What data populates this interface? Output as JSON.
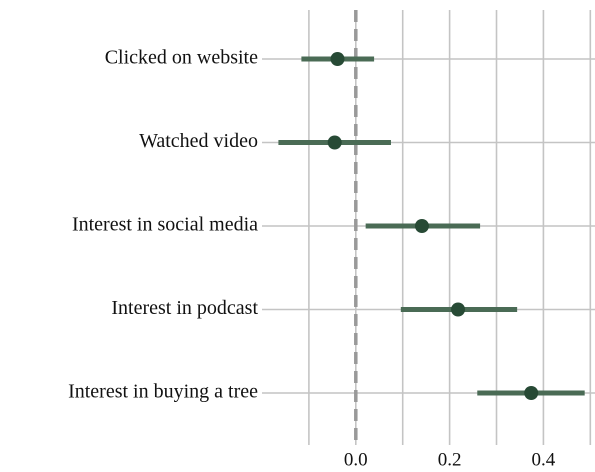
{
  "chart_data": {
    "type": "coefplot",
    "categories": [
      "Clicked on website",
      "Watched video",
      "Interest in social media",
      "Interest in podcast",
      "Interest in buying a tree"
    ],
    "values": [
      -0.039,
      -0.045,
      0.141,
      0.218,
      0.374
    ],
    "lower": [
      -0.116,
      -0.165,
      0.021,
      0.096,
      0.259
    ],
    "upper": [
      0.039,
      0.075,
      0.265,
      0.344,
      0.488
    ],
    "point_color": "#274a35",
    "bar_color": "#4a6b55",
    "xlim": [
      -0.2,
      0.51
    ],
    "xticks": [
      {
        "value": 0,
        "label": "0.0"
      },
      0.2,
      0.4
    ],
    "xminor": [
      -0.1,
      0.1,
      0.3,
      0.5
    ],
    "ref_line": 0,
    "ref_color": "#999999",
    "grid": true
  }
}
